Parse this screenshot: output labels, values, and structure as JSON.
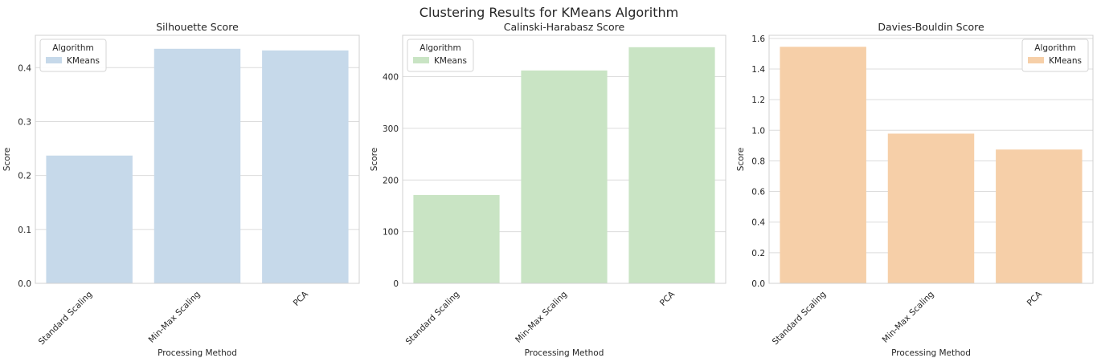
{
  "figure_title": "Clustering Results for KMeans Algorithm",
  "chart_data": [
    {
      "type": "bar",
      "title": "Silhouette Score",
      "xlabel": "Processing Method",
      "ylabel": "Score",
      "categories": [
        "Standard Scaling",
        "Min-Max Scaling",
        "PCA"
      ],
      "series": [
        {
          "name": "KMeans",
          "values": [
            0.237,
            0.435,
            0.432
          ]
        }
      ],
      "ylim": [
        0,
        0.46
      ],
      "yticks": [
        0.0,
        0.1,
        0.2,
        0.3,
        0.4
      ],
      "ytick_labels": [
        "0.0",
        "0.1",
        "0.2",
        "0.3",
        "0.4"
      ],
      "grid": true,
      "legend": {
        "title": "Algorithm",
        "placement": "upper-left"
      },
      "color": "#c6d9ea"
    },
    {
      "type": "bar",
      "title": "Calinski-Harabasz Score",
      "xlabel": "Processing Method",
      "ylabel": "Score",
      "categories": [
        "Standard Scaling",
        "Min-Max Scaling",
        "PCA"
      ],
      "series": [
        {
          "name": "KMeans",
          "values": [
            171,
            412,
            457
          ]
        }
      ],
      "ylim": [
        0,
        480
      ],
      "yticks": [
        0,
        100,
        200,
        300,
        400
      ],
      "ytick_labels": [
        "0",
        "100",
        "200",
        "300",
        "400"
      ],
      "grid": true,
      "legend": {
        "title": "Algorithm",
        "placement": "upper-left"
      },
      "color": "#c9e4c4"
    },
    {
      "type": "bar",
      "title": "Davies-Bouldin Score",
      "xlabel": "Processing Method",
      "ylabel": "Score",
      "categories": [
        "Standard Scaling",
        "Min-Max Scaling",
        "PCA"
      ],
      "series": [
        {
          "name": "KMeans",
          "values": [
            1.545,
            0.978,
            0.874
          ]
        }
      ],
      "ylim": [
        0,
        1.62
      ],
      "yticks": [
        0.0,
        0.2,
        0.4,
        0.6,
        0.8,
        1.0,
        1.2,
        1.4,
        1.6
      ],
      "ytick_labels": [
        "0.0",
        "0.2",
        "0.4",
        "0.6",
        "0.8",
        "1.0",
        "1.2",
        "1.4",
        "1.6"
      ],
      "grid": true,
      "legend": {
        "title": "Algorithm",
        "placement": "upper-right"
      },
      "color": "#f6cfa8"
    }
  ]
}
